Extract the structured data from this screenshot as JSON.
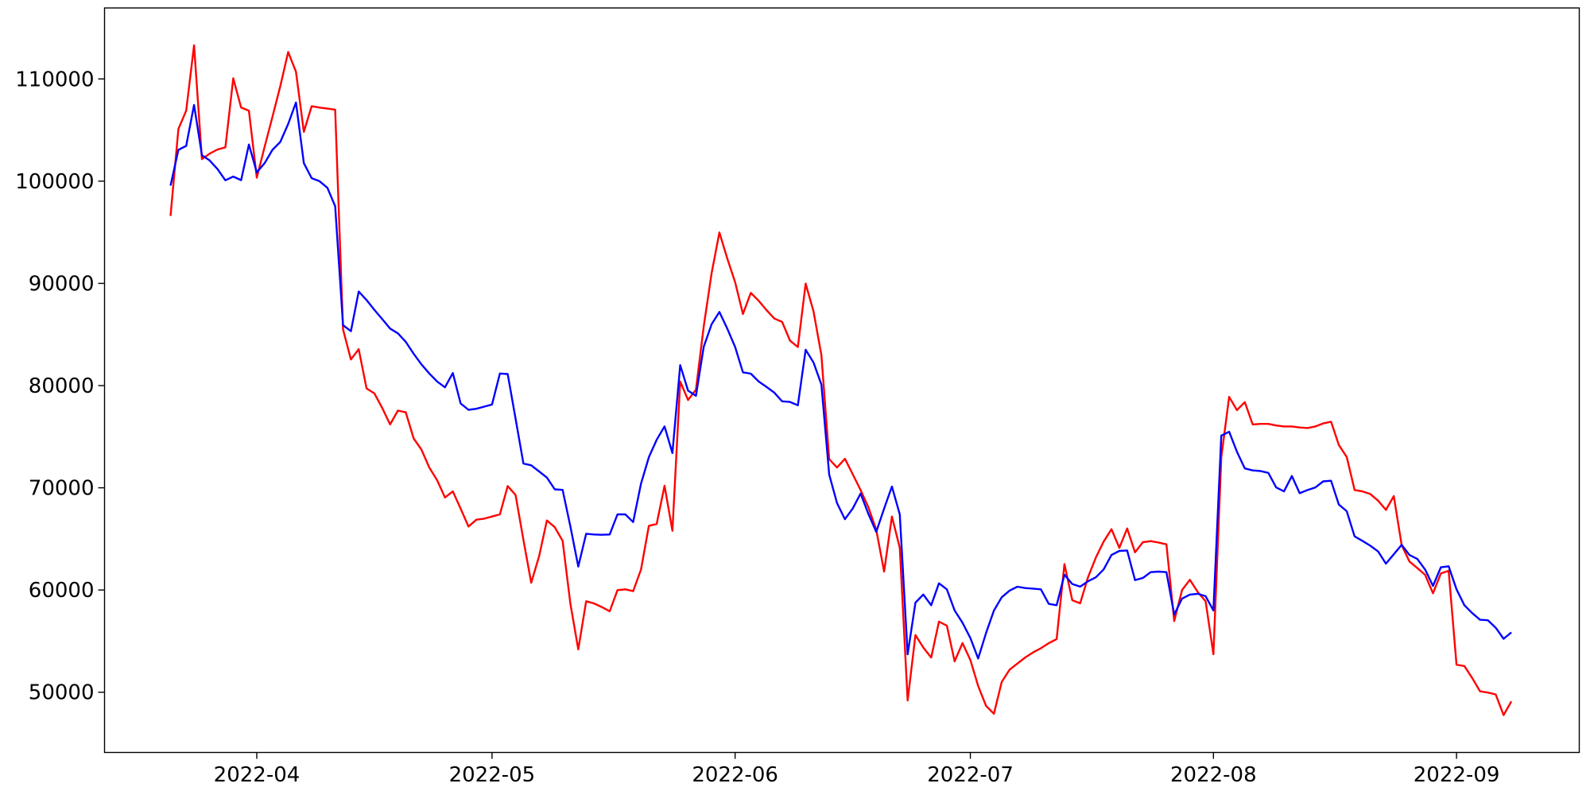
{
  "chart_data": {
    "type": "line",
    "title": "",
    "xlabel": "",
    "ylabel": "",
    "grid": false,
    "legend": "none",
    "background_color": "#ffffff",
    "frame_color": "#000000",
    "x_start_date": "2022-03-21",
    "x_frequency": "daily",
    "n_points": 172,
    "x_ticks": [
      {
        "label": "2022-04",
        "index": 11
      },
      {
        "label": "2022-05",
        "index": 41
      },
      {
        "label": "2022-06",
        "index": 72
      },
      {
        "label": "2022-07",
        "index": 102
      },
      {
        "label": "2022-08",
        "index": 133
      },
      {
        "label": "2022-09",
        "index": 164
      }
    ],
    "y_ticks": [
      50000,
      60000,
      70000,
      80000,
      90000,
      100000,
      110000
    ],
    "ylim": [
      44100,
      116900
    ],
    "series": [
      {
        "name": "red",
        "color": "#ff0000",
        "values": [
          96600,
          105100,
          106900,
          113290,
          102150,
          102700,
          103100,
          103300,
          110060,
          107200,
          106900,
          100340,
          103370,
          106290,
          109300,
          112640,
          110700,
          104820,
          107330,
          107200,
          107100,
          107000,
          85500,
          82550,
          83560,
          79720,
          79230,
          77810,
          76200,
          77550,
          77390,
          74830,
          73740,
          71980,
          70740,
          69050,
          69650,
          67970,
          66210,
          66880,
          66980,
          67190,
          67400,
          70170,
          69300,
          64900,
          60710,
          63300,
          66800,
          66150,
          64810,
          58640,
          54190,
          58900,
          58690,
          58330,
          57920,
          59990,
          60070,
          59890,
          62000,
          66280,
          66460,
          70200,
          65790,
          80400,
          78590,
          79600,
          85790,
          91000,
          94980,
          92440,
          90110,
          87000,
          89070,
          88300,
          87390,
          86560,
          86230,
          84400,
          83770,
          89980,
          87260,
          82990,
          72800,
          71980,
          72840,
          71330,
          69780,
          68090,
          65890,
          61800,
          67190,
          64130,
          49190,
          55590,
          54370,
          53390,
          56910,
          56520,
          53020,
          54810,
          53150,
          50610,
          48670,
          47890,
          51000,
          52200,
          52800,
          53400,
          53900,
          54300,
          54800,
          55200,
          62530,
          59000,
          58700,
          61230,
          63170,
          64730,
          65950,
          64130,
          66020,
          63690,
          64680,
          64780,
          64650,
          64470,
          56960,
          60000,
          61000,
          59810,
          58900,
          53720,
          72970,
          78900,
          77600,
          78380,
          76200,
          76250,
          76250,
          76100,
          76000,
          76000,
          75900,
          75850,
          76000,
          76300,
          76460,
          74180,
          73020,
          69780,
          69650,
          69390,
          68740,
          67840,
          69190,
          64400,
          62790,
          62140,
          61490,
          59680,
          61620,
          61880,
          52690,
          52560,
          51390,
          50090,
          49960,
          49780,
          47760,
          49110
        ]
      },
      {
        "name": "blue",
        "color": "#0000ff",
        "values": [
          99560,
          103060,
          103450,
          107460,
          102540,
          102020,
          101170,
          100080,
          100450,
          100100,
          103580,
          100860,
          101760,
          103060,
          103840,
          105600,
          107700,
          101760,
          100290,
          100000,
          99350,
          97550,
          85910,
          85320,
          89200,
          88370,
          87400,
          86500,
          85580,
          85110,
          84280,
          83120,
          82080,
          81180,
          80400,
          79830,
          81230,
          78250,
          77630,
          77730,
          77940,
          78150,
          81180,
          81130,
          76770,
          72370,
          72200,
          71600,
          71000,
          69850,
          69800,
          66200,
          62300,
          65500,
          65430,
          65400,
          65430,
          67400,
          67400,
          66650,
          70400,
          73000,
          74700,
          76000,
          73400,
          82000,
          79500,
          79000,
          83800,
          86000,
          87200,
          85580,
          83770,
          81300,
          81170,
          80400,
          79880,
          79310,
          78460,
          78400,
          78070,
          83510,
          82260,
          80100,
          71300,
          68500,
          66930,
          67970,
          69440,
          67450,
          65690,
          67970,
          70120,
          67400,
          53700,
          58770,
          59550,
          58510,
          60660,
          60070,
          58000,
          56800,
          55300,
          53300,
          55790,
          57990,
          59290,
          59940,
          60320,
          60190,
          60140,
          60070,
          58640,
          58510,
          61500,
          60590,
          60330,
          60850,
          61240,
          62010,
          63430,
          63820,
          63870,
          60970,
          61180,
          61750,
          61800,
          61750,
          57610,
          59160,
          59550,
          59630,
          59400,
          58000,
          75100,
          75480,
          73530,
          71900,
          71700,
          71640,
          71460,
          70040,
          69650,
          71150,
          69470,
          69780,
          70040,
          70630,
          70690,
          68360,
          67710,
          65250,
          64810,
          64340,
          63770,
          62580,
          63500,
          64420,
          63430,
          63040,
          62000,
          60400,
          62220,
          62320,
          60070,
          58510,
          57740,
          57090,
          57040,
          56310,
          55230,
          55850
        ]
      }
    ]
  }
}
